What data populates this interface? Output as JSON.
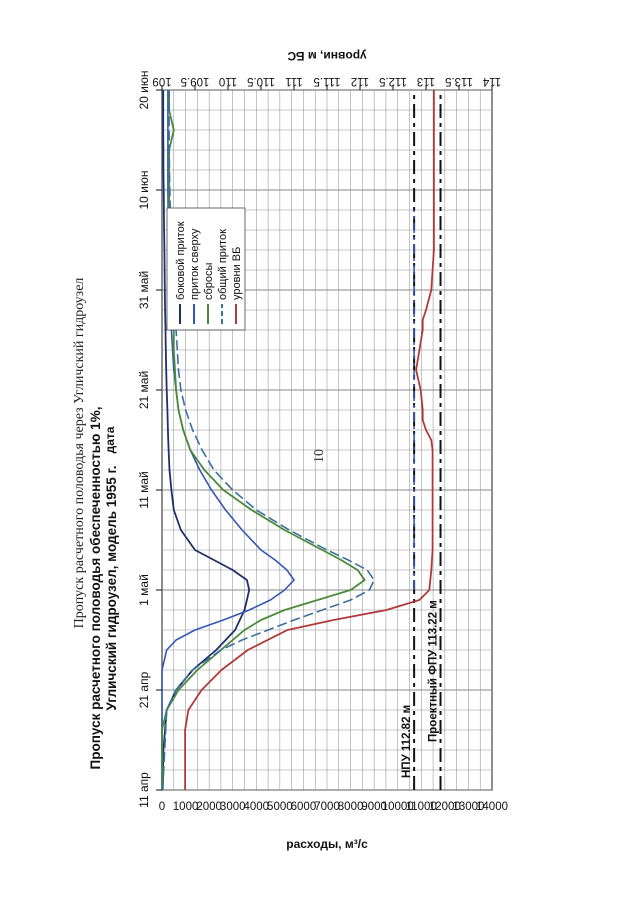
{
  "page": {
    "page_number": "10",
    "header": "Пропуск расчетного половодья через Угличский гидроузел"
  },
  "colors": {
    "side_inflow": "#1f2f6b",
    "inflow_above": "#3556b5",
    "discharges": "#4b8a3a",
    "total_inflow": "#3a6fa0",
    "reservoir_levels": "#b03a3a",
    "grid": "#888888"
  },
  "chart_data": {
    "type": "line",
    "title_line1": "Пропуск расчетного половодья обеспеченностью 1%,",
    "title_line2": "Угличский гидроузел, модель 1955 г.",
    "xlabel": "дата",
    "ylabel": "расходы, м³/с",
    "y2label": "уровни, м БС",
    "xlim": [
      0,
      70
    ],
    "ylim": [
      0,
      14000
    ],
    "y2lim": [
      109,
      114
    ],
    "x_ticks": [
      {
        "x": 0,
        "label": "11 апр"
      },
      {
        "x": 10,
        "label": "21 апр"
      },
      {
        "x": 20,
        "label": "1 май"
      },
      {
        "x": 30,
        "label": "11 май"
      },
      {
        "x": 40,
        "label": "21 май"
      },
      {
        "x": 50,
        "label": "31 май"
      },
      {
        "x": 60,
        "label": "10 июн"
      },
      {
        "x": 70,
        "label": "20 июн"
      }
    ],
    "y_ticks": [
      "0",
      "1000",
      "2000",
      "3000",
      "4000",
      "5000",
      "6000",
      "7000",
      "8000",
      "9000",
      "10000",
      "11000",
      "12000",
      "13000",
      "14000"
    ],
    "y2_ticks": [
      "109",
      "109.5",
      "110",
      "110.5",
      "111",
      "111.5",
      "112",
      "112.5",
      "113",
      "113.5",
      "114"
    ],
    "legend": [
      "боковой приток",
      "приток сверху",
      "сбросы",
      "общий приток",
      "уровни ВБ"
    ],
    "reference_lines": [
      {
        "label": "Проектный ФПУ 113.22 м",
        "level": 113.22
      },
      {
        "label": "НПУ 112.82 м",
        "level": 112.82
      }
    ],
    "series": [
      {
        "name": "боковой приток",
        "x": [
          0,
          4,
          8,
          10,
          12,
          14,
          16,
          18,
          19,
          20,
          21,
          22,
          23,
          24,
          26,
          28,
          30,
          32,
          34,
          36,
          38,
          40,
          42,
          44,
          46,
          48,
          50,
          52,
          54,
          56,
          58,
          60,
          62,
          64,
          66,
          68,
          70
        ],
        "values": [
          30,
          60,
          200,
          600,
          1300,
          2300,
          3100,
          3500,
          3600,
          3700,
          3600,
          3000,
          2200,
          1400,
          800,
          500,
          400,
          320,
          280,
          250,
          230,
          200,
          180,
          160,
          150,
          130,
          120,
          110,
          100,
          90,
          80,
          70,
          60,
          60,
          50,
          50,
          50
        ]
      },
      {
        "name": "приток сверху",
        "x": [
          0,
          8,
          10,
          12,
          14,
          15,
          16,
          17,
          18,
          19,
          20,
          21,
          22,
          23,
          24,
          26,
          28,
          30,
          32,
          34,
          36,
          38,
          40,
          42,
          44,
          46,
          48,
          50,
          52,
          54,
          56,
          58,
          60,
          62,
          64,
          66,
          68,
          70
        ],
        "values": [
          0,
          0,
          0,
          0,
          200,
          600,
          1400,
          2600,
          3700,
          4600,
          5200,
          5600,
          5300,
          4800,
          4200,
          3400,
          2700,
          2100,
          1600,
          1200,
          900,
          700,
          600,
          500,
          450,
          400,
          380,
          350,
          330,
          300,
          280,
          260,
          250,
          250,
          250,
          250,
          250,
          250
        ]
      },
      {
        "name": "сбросы",
        "x": [
          0,
          6,
          8,
          10,
          12,
          14,
          16,
          17,
          18,
          19,
          20,
          21,
          22,
          23,
          24,
          26,
          28,
          30,
          32,
          34,
          36,
          38,
          40,
          42,
          44,
          46,
          48,
          50,
          52,
          54,
          56,
          58,
          60,
          62,
          64,
          66,
          68,
          70
        ],
        "values": [
          0,
          0,
          200,
          700,
          1500,
          2500,
          3500,
          4200,
          5200,
          6600,
          8000,
          8600,
          8300,
          7600,
          6800,
          5200,
          3800,
          2600,
          1800,
          1200,
          900,
          700,
          600,
          550,
          500,
          500,
          450,
          400,
          400,
          350,
          350,
          300,
          300,
          300,
          300,
          500,
          300,
          300
        ]
      },
      {
        "name": "общий приток",
        "x": [
          0,
          8,
          10,
          12,
          14,
          15,
          16,
          17,
          18,
          19,
          20,
          21,
          22,
          23,
          24,
          26,
          28,
          30,
          32,
          34,
          36,
          38,
          40,
          42,
          44,
          46,
          48,
          50,
          52,
          54,
          56,
          58,
          60,
          62,
          64,
          66,
          68,
          70
        ],
        "values": [
          30,
          200,
          600,
          1300,
          2500,
          3400,
          4500,
          5600,
          6800,
          8000,
          8800,
          9000,
          8700,
          7900,
          7000,
          5400,
          4000,
          3000,
          2200,
          1700,
          1300,
          1000,
          800,
          700,
          650,
          600,
          550,
          500,
          450,
          400,
          380,
          350,
          330,
          320,
          310,
          300,
          300,
          300
        ]
      },
      {
        "name": "уровни ВБ",
        "axis": "right",
        "x": [
          0,
          4,
          6,
          8,
          10,
          12,
          14,
          16,
          17,
          18,
          19,
          20,
          22,
          24,
          26,
          28,
          30,
          32,
          34,
          35,
          36,
          37,
          38,
          40,
          42,
          44,
          46,
          47,
          48,
          50,
          52,
          54,
          56,
          58,
          60,
          62,
          64,
          66,
          68,
          70
        ],
        "values": [
          109.35,
          109.35,
          109.35,
          109.4,
          109.6,
          109.9,
          110.3,
          110.9,
          111.6,
          112.4,
          112.9,
          113.05,
          113.08,
          113.1,
          113.1,
          113.1,
          113.1,
          113.1,
          113.1,
          113.08,
          113.0,
          112.95,
          112.95,
          112.92,
          112.85,
          112.9,
          112.95,
          112.95,
          113.0,
          113.08,
          113.1,
          113.12,
          113.12,
          113.12,
          113.12,
          113.12,
          113.12,
          113.12,
          113.12,
          113.12
        ]
      }
    ]
  }
}
